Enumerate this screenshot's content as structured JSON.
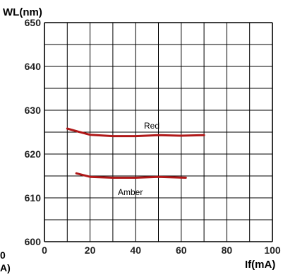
{
  "chart_data": {
    "type": "line",
    "ylabel": "WL(nm)",
    "xlabel": "If(mA)",
    "xlim": [
      0,
      100
    ],
    "ylim": [
      600,
      650
    ],
    "x_ticks": [
      "0",
      "20",
      "40",
      "60",
      "80",
      "100"
    ],
    "y_ticks": [
      "600",
      "610",
      "620",
      "630",
      "640",
      "650"
    ],
    "grid": true,
    "colors": {
      "series": "#b01818",
      "grid": "#000000",
      "text": "#222222"
    },
    "series": [
      {
        "name": "Red",
        "points": [
          [
            10,
            625.8
          ],
          [
            15,
            625.1
          ],
          [
            20,
            624.4
          ],
          [
            30,
            624.1
          ],
          [
            40,
            624.1
          ],
          [
            50,
            624.3
          ],
          [
            60,
            624.2
          ],
          [
            70,
            624.3
          ]
        ]
      },
      {
        "name": "Amber",
        "points": [
          [
            14,
            615.6
          ],
          [
            20,
            614.8
          ],
          [
            30,
            614.6
          ],
          [
            40,
            614.6
          ],
          [
            50,
            614.8
          ],
          [
            62,
            614.6
          ]
        ]
      }
    ]
  },
  "cut_off": {
    "left_zero": "0",
    "left_unit": "A)"
  }
}
